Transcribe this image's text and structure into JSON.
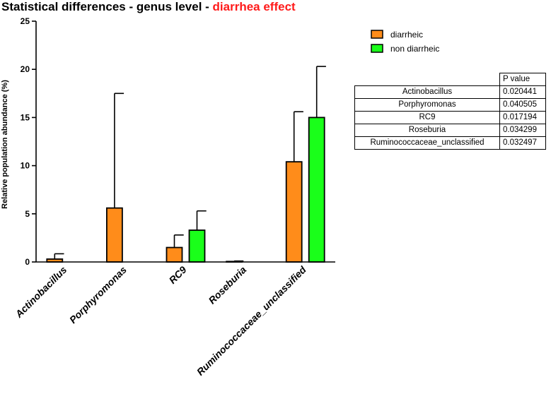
{
  "title": {
    "main": "Statistical differences - genus level  - ",
    "highlight": "diarrhea effect",
    "highlight_color": "#ff1a1a"
  },
  "chart_data": {
    "type": "bar",
    "title": "Statistical differences - genus level  - diarrhea effect",
    "xlabel": "",
    "ylabel": "Relative population abundance (%)",
    "ylim": [
      0,
      25
    ],
    "yticks": [
      0,
      5,
      10,
      15,
      20,
      25
    ],
    "categories": [
      "Actinobacillus",
      "Porphyromonas",
      "RC9",
      "Roseburia",
      "Ruminococcaceae_unclassified"
    ],
    "series": [
      {
        "name": "diarrheic",
        "color": "#ff8c1a",
        "values": [
          0.3,
          5.6,
          1.5,
          0.05,
          10.4
        ],
        "error_upper": [
          0.85,
          17.5,
          2.8,
          0.1,
          15.6
        ]
      },
      {
        "name": "non diarrheic",
        "color": "#1aff1a",
        "values": [
          0,
          0,
          3.3,
          0,
          15.0
        ],
        "error_upper": [
          null,
          null,
          5.3,
          null,
          20.3
        ]
      }
    ],
    "legend_position": "top-right"
  },
  "pvalue_table": {
    "header": "P value",
    "rows": [
      {
        "genus": "Actinobacillus",
        "p": "0.020441"
      },
      {
        "genus": "Porphyromonas",
        "p": "0.040505"
      },
      {
        "genus": "RC9",
        "p": "0.017194"
      },
      {
        "genus": "Roseburia",
        "p": "0.034299"
      },
      {
        "genus": "Ruminococcaceae_unclassified",
        "p": "0.032497"
      }
    ]
  }
}
